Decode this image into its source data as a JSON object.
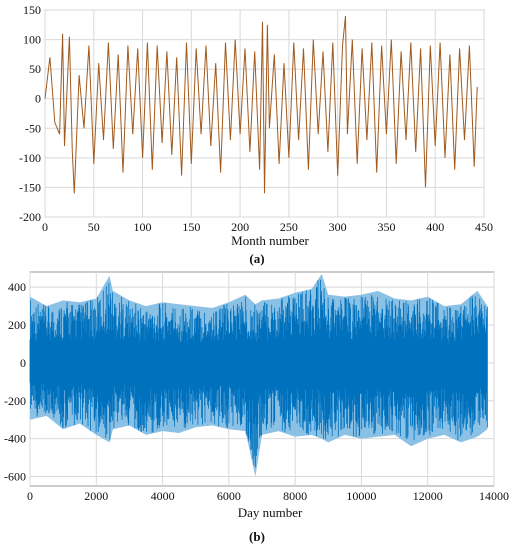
{
  "chart_data": [
    {
      "type": "line",
      "panel_label": "(a)",
      "xlabel": "Month number",
      "ylabel": "",
      "xlim": [
        0,
        450
      ],
      "ylim": [
        -200,
        150
      ],
      "xticks": [
        0,
        50,
        100,
        150,
        200,
        250,
        300,
        350,
        400,
        450
      ],
      "yticks": [
        -200,
        -150,
        -100,
        -50,
        0,
        50,
        100,
        150
      ],
      "grid": true,
      "series": [
        {
          "color": "#a05a1e",
          "x": [
            0,
            5,
            10,
            15,
            18,
            20,
            25,
            28,
            30,
            35,
            40,
            45,
            50,
            55,
            60,
            65,
            70,
            75,
            80,
            85,
            90,
            95,
            100,
            105,
            110,
            115,
            120,
            125,
            130,
            135,
            140,
            145,
            150,
            155,
            160,
            165,
            170,
            175,
            180,
            185,
            190,
            195,
            200,
            205,
            210,
            215,
            220,
            223,
            225,
            228,
            230,
            235,
            240,
            245,
            250,
            255,
            260,
            265,
            270,
            275,
            280,
            285,
            290,
            295,
            300,
            305,
            308,
            310,
            315,
            320,
            325,
            330,
            335,
            340,
            345,
            350,
            355,
            360,
            365,
            370,
            375,
            380,
            385,
            390,
            395,
            400,
            405,
            410,
            415,
            420,
            425,
            430,
            435,
            440,
            443
          ],
          "y": [
            0,
            70,
            -40,
            -60,
            110,
            -80,
            105,
            -90,
            -160,
            40,
            -50,
            90,
            -110,
            60,
            -70,
            95,
            -85,
            75,
            -125,
            90,
            -60,
            85,
            -100,
            95,
            -120,
            90,
            -75,
            80,
            -95,
            70,
            -130,
            95,
            -110,
            85,
            -60,
            90,
            -80,
            60,
            -125,
            95,
            -70,
            100,
            -60,
            85,
            -90,
            80,
            -120,
            130,
            -160,
            125,
            -50,
            75,
            -110,
            60,
            -100,
            95,
            -70,
            85,
            -120,
            100,
            -60,
            80,
            -90,
            95,
            -130,
            90,
            140,
            -60,
            100,
            -110,
            85,
            -70,
            95,
            -125,
            90,
            -60,
            100,
            -110,
            80,
            -70,
            95,
            -90,
            85,
            -150,
            90,
            -80,
            95,
            -100,
            75,
            -120,
            85,
            -70,
            90,
            -115,
            20
          ]
        }
      ]
    },
    {
      "type": "line",
      "panel_label": "(b)",
      "xlabel": "Day number",
      "ylabel": "",
      "xlim": [
        0,
        14000
      ],
      "ylim": [
        -650,
        480
      ],
      "xticks": [
        0,
        2000,
        4000,
        6000,
        8000,
        10000,
        12000,
        14000
      ],
      "yticks": [
        -600,
        -400,
        -200,
        0,
        200,
        400
      ],
      "grid": true,
      "series": [
        {
          "color": "#0072bd",
          "x": [
            0,
            500,
            1000,
            1500,
            2000,
            2400,
            2500,
            3000,
            3500,
            4000,
            4500,
            5000,
            5500,
            6000,
            6500,
            6800,
            7000,
            7500,
            8000,
            8500,
            8800,
            9000,
            9500,
            10000,
            10500,
            11000,
            11500,
            12000,
            12500,
            13000,
            13500,
            13800
          ],
          "y_upper": [
            350,
            300,
            330,
            320,
            340,
            460,
            380,
            330,
            300,
            320,
            310,
            300,
            290,
            320,
            360,
            310,
            330,
            340,
            370,
            390,
            470,
            360,
            350,
            360,
            380,
            340,
            330,
            350,
            300,
            310,
            380,
            300
          ],
          "y_lower": [
            -300,
            -280,
            -350,
            -320,
            -380,
            -420,
            -350,
            -330,
            -380,
            -360,
            -370,
            -340,
            -330,
            -350,
            -360,
            -600,
            -380,
            -360,
            -390,
            -380,
            -400,
            -420,
            -380,
            -400,
            -390,
            -380,
            -440,
            -400,
            -380,
            -420,
            -390,
            -350
          ]
        }
      ]
    }
  ]
}
